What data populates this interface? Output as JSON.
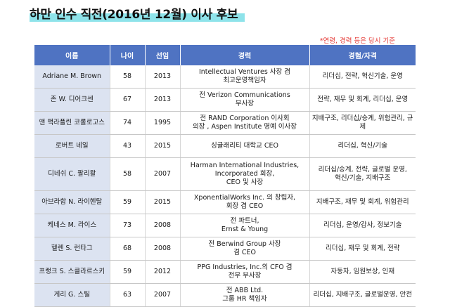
{
  "title": "하만 인수 직전(2016년 12월) 이사 후보",
  "note": "*연령, 경력 등은 당시 기준",
  "colors": {
    "header": "#4f73c2",
    "name_cell": "#dce3f1",
    "highlight": "#8ee3ea",
    "note": "#e53935"
  },
  "headers": {
    "name": "이름",
    "age": "나이",
    "elected": "선임",
    "career": "경력",
    "expertise": "경험/자격"
  },
  "rows": [
    {
      "name": "Adriane M. Brown",
      "age": "58",
      "elected": "2013",
      "career": [
        "Intellectual Ventures 사장 겸",
        "최고운영책임자"
      ],
      "expertise": [
        "리더십, 전략, 혁신기술, 운영"
      ]
    },
    {
      "name": "존 W. 디어크센",
      "age": "67",
      "elected": "2013",
      "career": [
        "전 Verizon Communications",
        "부사장"
      ],
      "expertise": [
        "전략, 재무 및 회계, 리더십, 운영"
      ]
    },
    {
      "name": "앤 맥라플린 코롤로고스",
      "age": "74",
      "elected": "1995",
      "career": [
        "전 RAND Corporation 이사회",
        "의장 , Aspen Institute 명예 이사장"
      ],
      "expertise": [
        "지배구조, 리더십/승계, 위험관리, 규제"
      ]
    },
    {
      "name": "로버트 네일",
      "age": "43",
      "elected": "2015",
      "career": [
        "싱귤래리티 대학교 CEO"
      ],
      "expertise": [
        "리더십, 혁신/기술"
      ]
    },
    {
      "name": "디네쉬 C. 팔리왈",
      "age": "58",
      "elected": "2007",
      "career": [
        "Harman International Industries,",
        "Incorporated 회장,",
        "CEO 및 사장"
      ],
      "expertise": [
        "리더십/승계, 전략, 글로벌 운영,",
        "혁신/기술, 지배구조"
      ]
    },
    {
      "name": "아브라함 N. 라이헨탈",
      "age": "59",
      "elected": "2015",
      "career": [
        "XponentialWorks Inc. 의 창립자,",
        "회장 겸 CEO"
      ],
      "expertise": [
        "지배구조, 재무 및 회계, 위험관리"
      ]
    },
    {
      "name": "케네스 M. 라이스",
      "age": "73",
      "elected": "2008",
      "career": [
        "전 파트너,",
        "Ernst & Young"
      ],
      "expertise": [
        "리더십, 운영/감사, 정보기술"
      ]
    },
    {
      "name": "헬렌 S. 런타그",
      "age": "68",
      "elected": "2008",
      "career": [
        "전 Berwind Group 사장",
        "겸 CEO"
      ],
      "expertise": [
        "리더십, 재무 및 회계, 전략"
      ]
    },
    {
      "name": "프랭크 S. 스클라르스키",
      "age": "59",
      "elected": "2012",
      "career": [
        "PPG Industries, Inc.의 CFO 겸",
        "전무 부사장"
      ],
      "expertise": [
        "자동차, 임원보상, 인재"
      ]
    },
    {
      "name": "게리 G. 스틸",
      "age": "63",
      "elected": "2007",
      "career": [
        "전 ABB Ltd.",
        "그룹 HR 책임자"
      ],
      "expertise": [
        "리더십, 지배구조, 글로벌운영, 안전"
      ]
    }
  ]
}
